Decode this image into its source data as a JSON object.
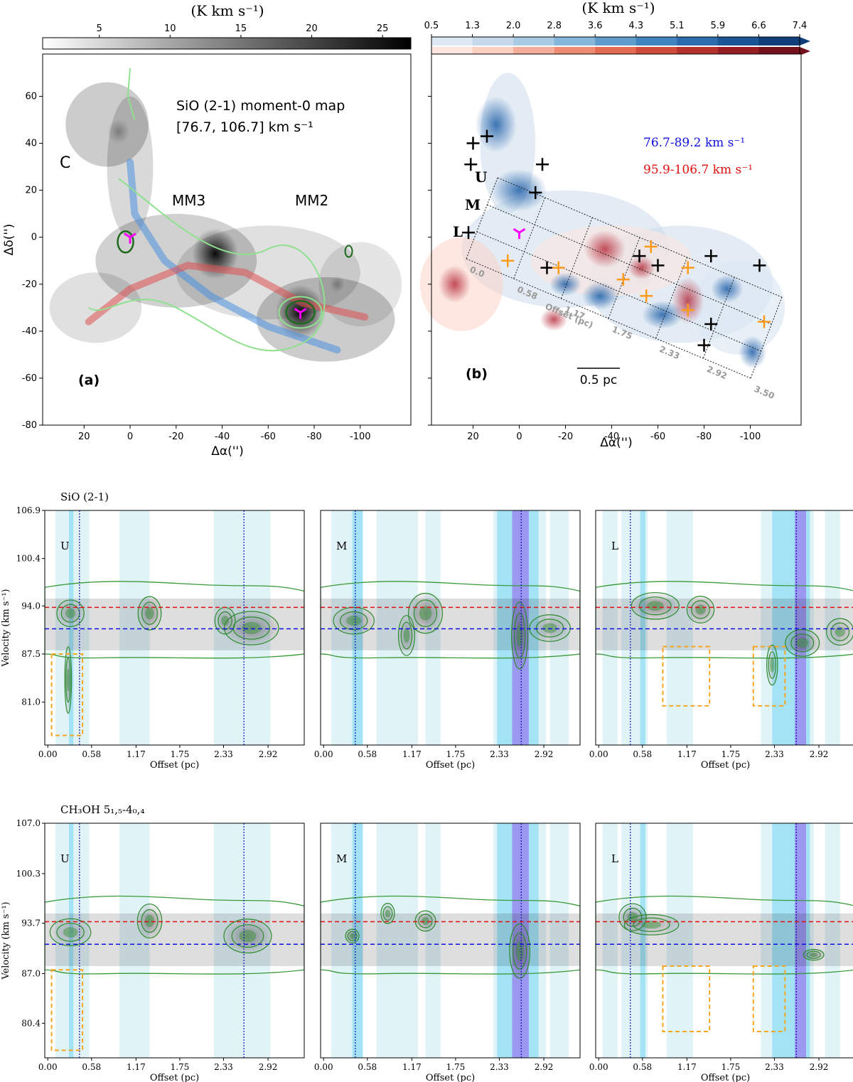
{
  "chart_data": [
    {
      "type": "heatmap",
      "panel_label": "(a)",
      "title_lines": [
        "SiO (2-1) moment-0 map",
        "[76.7, 106.7] km s⁻¹"
      ],
      "colorbar": {
        "unit": "(K km s⁻¹)",
        "ticks": [
          "5",
          "10",
          "15",
          "20",
          "25"
        ],
        "range": [
          1,
          27
        ],
        "cmap": "grays"
      },
      "xlabel": "Δα('')",
      "ylabel": "Δδ('')",
      "x_ticks": [
        "20",
        "0",
        "-20",
        "-40",
        "-60",
        "-80",
        "-100"
      ],
      "y_ticks": [
        "60",
        "40",
        "20",
        "0",
        "-20",
        "-40",
        "-60",
        "-80"
      ],
      "xlim": [
        38,
        -122
      ],
      "ylim": [
        -80,
        78
      ],
      "annotations": [
        "C",
        "MM3",
        "MM2"
      ],
      "cores": [
        {
          "x": 0,
          "y": 0
        },
        {
          "x": -74,
          "y": -32
        }
      ],
      "emission_blobs": [
        {
          "x": -37,
          "y": -7,
          "peak": 25
        },
        {
          "x": -74,
          "y": -32,
          "peak": 27
        },
        {
          "x": 5,
          "y": 45,
          "peak": 12
        },
        {
          "x": -90,
          "y": -20,
          "peak": 8
        }
      ],
      "filament_curves": [
        {
          "color": "blue",
          "points": [
            [
              0,
              32
            ],
            [
              -2,
              10
            ],
            [
              -15,
              -10
            ],
            [
              -35,
              -25
            ],
            [
              -60,
              -38
            ],
            [
              -90,
              -48
            ]
          ]
        },
        {
          "color": "red",
          "points": [
            [
              18,
              -36
            ],
            [
              0,
              -22
            ],
            [
              -25,
              -12
            ],
            [
              -50,
              -15
            ],
            [
              -75,
              -28
            ],
            [
              -102,
              -34
            ]
          ]
        }
      ]
    },
    {
      "type": "heatmap",
      "panel_label": "(b)",
      "colorbar": {
        "unit": "(K km s⁻¹)",
        "ticks": [
          "0.5",
          "1.3",
          "2.0",
          "2.8",
          "3.6",
          "4.3",
          "5.1",
          "5.9",
          "6.6",
          "7.4"
        ]
      },
      "legend": [
        "76.7-89.2 km s⁻¹",
        "95.9-106.7 km s⁻¹"
      ],
      "xlabel": "Δα('')",
      "x_ticks": [
        "20",
        "0",
        "-20",
        "-40",
        "-60",
        "-80",
        "-100"
      ],
      "xlim": [
        38,
        -122
      ],
      "ylim": [
        -80,
        78
      ],
      "cuts": [
        "U",
        "M",
        "L"
      ],
      "offset_ticks": [
        "0.0",
        "0.58",
        "1.17",
        "1.75",
        "2.33",
        "2.92",
        "3.50"
      ],
      "offset_label": "Offset (pc)",
      "scalebar": "0.5 pc",
      "black_crosses": [
        [
          21,
          31
        ],
        [
          20,
          40
        ],
        [
          14,
          43
        ],
        [
          -10,
          31
        ],
        [
          -7,
          19
        ],
        [
          22,
          2
        ],
        [
          -12,
          -13
        ],
        [
          -52,
          -8
        ],
        [
          -60,
          -12
        ],
        [
          -83,
          -8
        ],
        [
          -104,
          -12
        ],
        [
          -83,
          -37
        ],
        [
          -80,
          -46
        ]
      ],
      "orange_crosses": [
        [
          5,
          -10
        ],
        [
          -17,
          -13
        ],
        [
          -45,
          -18
        ],
        [
          -57,
          -4
        ],
        [
          -55,
          -25
        ],
        [
          -73,
          -13
        ],
        [
          -73,
          -31
        ],
        [
          -106,
          -36
        ]
      ],
      "blue_blobs": [
        [
          0,
          20,
          12,
          9
        ],
        [
          10,
          48,
          9,
          12
        ],
        [
          -20,
          -20,
          7,
          5
        ],
        [
          -62,
          -33,
          9,
          6
        ],
        [
          -101,
          -49,
          6,
          7
        ],
        [
          -35,
          -25,
          8,
          6
        ],
        [
          -90,
          -22,
          7,
          6
        ]
      ],
      "red_blobs": [
        [
          -37,
          -5,
          9,
          8
        ],
        [
          -73,
          -27,
          7,
          10
        ],
        [
          -53,
          -13,
          6,
          5
        ],
        [
          28,
          -20,
          7,
          8
        ],
        [
          -15,
          -35,
          6,
          5
        ]
      ]
    },
    {
      "type": "heatmap",
      "group_title": "SiO (2-1)",
      "ylabel": "Velocity (km s⁻¹)",
      "xlabel": "Offset (pc)",
      "x_ticks": [
        "0.00",
        "0.58",
        "1.17",
        "1.75",
        "2.33",
        "2.92"
      ],
      "y_ticks": [
        "106.9",
        "100.4",
        "94.0",
        "87.5",
        "81.0"
      ],
      "ylim": [
        75.2,
        106.9
      ],
      "xlim": [
        -0.04,
        3.4
      ],
      "ref_velocities": {
        "red": 93.8,
        "blue": 90.9
      },
      "panels": [
        {
          "name": "U",
          "dashed_box": {
            "x": [
              0.05,
              0.46
            ],
            "v": [
              76.5,
              87.5
            ]
          },
          "dotted_x": [
            0.42,
            2.6
          ],
          "light_bands": [
            [
              0.1,
              0.35
            ],
            [
              0.35,
              0.55
            ],
            [
              0.95,
              1.35
            ],
            [
              2.2,
              2.95
            ]
          ],
          "dark_bands": [
            [
              0.28,
              0.34
            ]
          ],
          "purple_bands": [],
          "blobs": [
            [
              0.27,
              84,
              0.05,
              5,
              1
            ],
            [
              1.35,
              93,
              0.17,
              2.5,
              1
            ],
            [
              2.7,
              91,
              0.4,
              2.5,
              1
            ],
            [
              0.3,
              93,
              0.2,
              2,
              0.7
            ],
            [
              2.35,
              92,
              0.15,
              2,
              0.7
            ]
          ]
        },
        {
          "name": "M",
          "dashed_box": null,
          "dotted_x": [
            0.42,
            2.62
          ],
          "light_bands": [
            [
              0.1,
              0.4
            ],
            [
              0.7,
              1.25
            ],
            [
              1.35,
              1.55
            ],
            [
              2.25,
              2.95
            ],
            [
              3.0,
              3.25
            ]
          ],
          "dark_bands": [
            [
              0.38,
              0.52
            ],
            [
              2.3,
              2.85
            ]
          ],
          "purple_bands": [
            [
              2.5,
              2.72
            ]
          ],
          "blobs": [
            [
              1.35,
              93,
              0.25,
              3,
              1
            ],
            [
              2.6,
              90,
              0.12,
              5,
              1
            ],
            [
              0.4,
              92,
              0.3,
              2,
              0.8
            ],
            [
              1.1,
              90,
              0.12,
              3,
              0.8
            ],
            [
              3.0,
              91,
              0.3,
              2,
              0.6
            ]
          ]
        },
        {
          "name": "L",
          "dashed_box": {
            "x": [
              0.85,
              1.47
            ],
            "v": [
              80.5,
              88.5
            ]
          },
          "dashed_box2": {
            "x": [
              2.05,
              2.47
            ],
            "v": [
              80.5,
              88.5
            ]
          },
          "dotted_x": [
            0.42,
            2.62
          ],
          "light_bands": [
            [
              0.05,
              0.25
            ],
            [
              0.3,
              0.65
            ],
            [
              0.9,
              1.25
            ],
            [
              2.15,
              2.85
            ],
            [
              3.0,
              3.2
            ]
          ],
          "dark_bands": [
            [
              0.55,
              0.62
            ],
            [
              2.3,
              2.8
            ]
          ],
          "purple_bands": [
            [
              2.6,
              2.75
            ]
          ],
          "blobs": [
            [
              0.75,
              94,
              0.35,
              2,
              1
            ],
            [
              1.35,
              93.5,
              0.2,
              2,
              0.9
            ],
            [
              2.7,
              89,
              0.25,
              2,
              0.9
            ],
            [
              2.3,
              86,
              0.08,
              3,
              0.6
            ],
            [
              3.2,
              90.5,
              0.2,
              2,
              0.6
            ]
          ]
        }
      ]
    },
    {
      "type": "heatmap",
      "group_title": "CH₃OH 5₁,₅-4₀,₄",
      "ylabel": "Velocity (km s⁻¹)",
      "xlabel": "Offset (pc)",
      "x_ticks": [
        "0.00",
        "0.58",
        "1.17",
        "1.75",
        "2.33",
        "2.92"
      ],
      "y_ticks": [
        "107.0",
        "100.3",
        "93.7",
        "87.0",
        "80.4"
      ],
      "ylim": [
        75.8,
        107.0
      ],
      "xlim": [
        -0.04,
        3.4
      ],
      "ref_velocities": {
        "red": 93.9,
        "blue": 90.9
      },
      "panels": [
        {
          "name": "U",
          "dashed_box": {
            "x": [
              0.05,
              0.46
            ],
            "v": [
              76.8,
              87.5
            ]
          },
          "dotted_x": [
            0.42,
            2.6
          ],
          "light_bands": [
            [
              0.1,
              0.35
            ],
            [
              0.35,
              0.55
            ],
            [
              0.95,
              1.35
            ],
            [
              2.2,
              2.95
            ]
          ],
          "dark_bands": [
            [
              0.28,
              0.34
            ]
          ],
          "purple_bands": [],
          "blobs": [
            [
              1.35,
              94,
              0.18,
              2.5,
              1
            ],
            [
              2.65,
              92,
              0.35,
              2.5,
              1
            ],
            [
              0.3,
              92.5,
              0.3,
              2,
              0.5
            ]
          ]
        },
        {
          "name": "M",
          "dashed_box": null,
          "dotted_x": [
            0.42,
            2.62
          ],
          "light_bands": [
            [
              0.1,
              0.4
            ],
            [
              0.7,
              1.25
            ],
            [
              1.35,
              1.55
            ],
            [
              2.25,
              2.95
            ],
            [
              3.0,
              3.25
            ]
          ],
          "dark_bands": [
            [
              0.38,
              0.52
            ],
            [
              2.3,
              2.85
            ]
          ],
          "purple_bands": [
            [
              2.5,
              2.72
            ]
          ],
          "blobs": [
            [
              0.38,
              92,
              0.1,
              1,
              1
            ],
            [
              1.35,
              94,
              0.15,
              1.5,
              0.9
            ],
            [
              0.85,
              95,
              0.1,
              1.5,
              0.8
            ],
            [
              2.6,
              90,
              0.15,
              4,
              1
            ]
          ]
        },
        {
          "name": "L",
          "dashed_box": {
            "x": [
              0.85,
              1.47
            ],
            "v": [
              79.3,
              88.0
            ]
          },
          "dashed_box2": {
            "x": [
              2.05,
              2.47
            ],
            "v": [
              79.3,
              88.0
            ]
          },
          "dotted_x": [
            0.42,
            2.62
          ],
          "light_bands": [
            [
              0.05,
              0.25
            ],
            [
              0.3,
              0.65
            ],
            [
              0.9,
              1.25
            ],
            [
              2.15,
              2.85
            ],
            [
              3.0,
              3.2
            ]
          ],
          "dark_bands": [
            [
              0.55,
              0.62
            ],
            [
              2.3,
              2.8
            ]
          ],
          "purple_bands": [
            [
              2.6,
              2.75
            ]
          ],
          "blobs": [
            [
              0.45,
              94.5,
              0.2,
              2,
              1
            ],
            [
              2.85,
              89.5,
              0.15,
              0.8,
              1
            ],
            [
              0.7,
              93.5,
              0.4,
              1.5,
              0.6
            ]
          ]
        }
      ]
    }
  ]
}
